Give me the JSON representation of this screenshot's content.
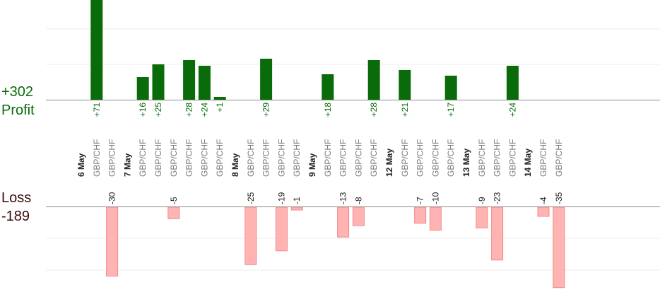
{
  "summary": {
    "profit_total": "+302",
    "profit_label": "Profit",
    "loss_label": "Loss",
    "loss_total": "-189"
  },
  "colors": {
    "profit_bar": "#0a6b0a",
    "loss_bar": "#ffb3b3",
    "profit_text": "#0a6b0a",
    "pair_text": "#7a7a7a",
    "date_text": "#222222"
  },
  "chart_data": {
    "type": "bar",
    "profit_ylim": [
      0,
      80
    ],
    "loss_ylim": [
      0,
      30
    ],
    "grid": true,
    "categories": [
      {
        "label": "6 May",
        "kind": "date"
      },
      {
        "label": "GBP/CHF",
        "kind": "trade",
        "value": 71
      },
      {
        "label": "GBP/CHF",
        "kind": "trade",
        "value": -30
      },
      {
        "label": "7 May",
        "kind": "date"
      },
      {
        "label": "GBP/CHF",
        "kind": "trade",
        "value": 16
      },
      {
        "label": "GBP/CHF",
        "kind": "trade",
        "value": 25
      },
      {
        "label": "GBP/CHF",
        "kind": "trade",
        "value": -5
      },
      {
        "label": "GBP/CHF",
        "kind": "trade",
        "value": 28
      },
      {
        "label": "GBP/CHF",
        "kind": "trade",
        "value": 24
      },
      {
        "label": "GBP/CHF",
        "kind": "trade",
        "value": 1
      },
      {
        "label": "8 May",
        "kind": "date"
      },
      {
        "label": "GBP/CHF",
        "kind": "trade",
        "value": -25
      },
      {
        "label": "GBP/CHF",
        "kind": "trade",
        "value": 29
      },
      {
        "label": "GBP/CHF",
        "kind": "trade",
        "value": -19
      },
      {
        "label": "GBP/CHF",
        "kind": "trade",
        "value": -1
      },
      {
        "label": "9 May",
        "kind": "date"
      },
      {
        "label": "GBP/CHF",
        "kind": "trade",
        "value": 18
      },
      {
        "label": "GBP/CHF",
        "kind": "trade",
        "value": -13
      },
      {
        "label": "GBP/CHF",
        "kind": "trade",
        "value": -8
      },
      {
        "label": "GBP/CHF",
        "kind": "trade",
        "value": 28
      },
      {
        "label": "12 May",
        "kind": "date"
      },
      {
        "label": "GBP/CHF",
        "kind": "trade",
        "value": 21
      },
      {
        "label": "GBP/CHF",
        "kind": "trade",
        "value": -7
      },
      {
        "label": "GBP/CHF",
        "kind": "trade",
        "value": -10
      },
      {
        "label": "GBP/CHF",
        "kind": "trade",
        "value": 17
      },
      {
        "label": "13 May",
        "kind": "date"
      },
      {
        "label": "GBP/CHF",
        "kind": "trade",
        "value": -9
      },
      {
        "label": "GBP/CHF",
        "kind": "trade",
        "value": -23
      },
      {
        "label": "GBP/CHF",
        "kind": "trade",
        "value": 24
      },
      {
        "label": "14 May",
        "kind": "date"
      },
      {
        "label": "GBP/CHF",
        "kind": "trade",
        "value": -4
      },
      {
        "label": "GBP/CHF",
        "kind": "trade",
        "value": -35
      }
    ]
  }
}
